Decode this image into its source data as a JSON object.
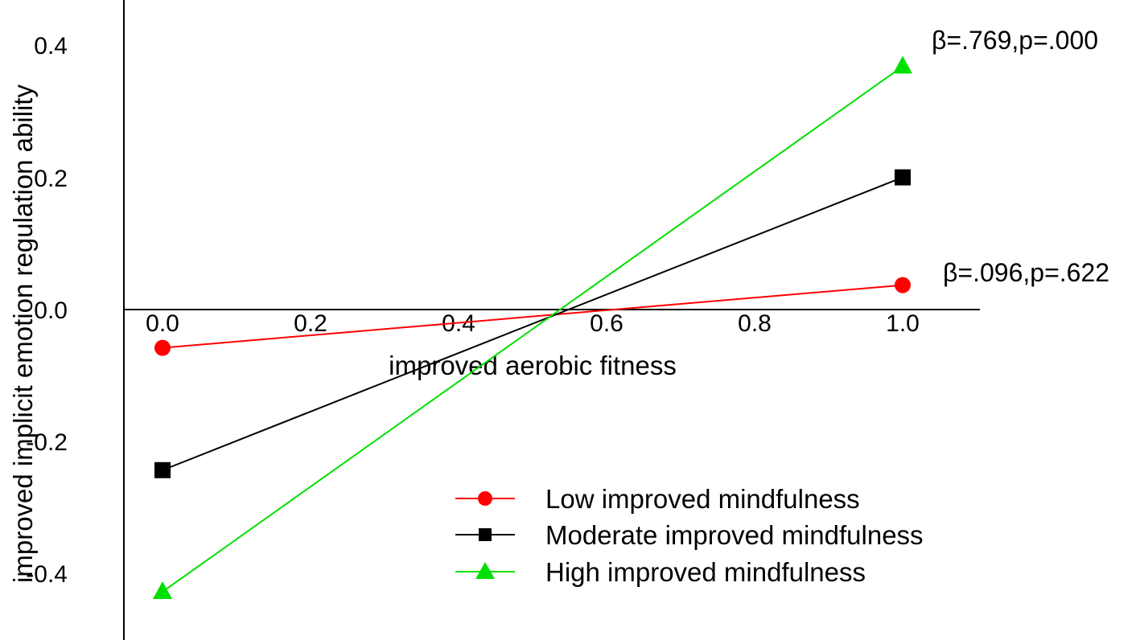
{
  "chart_data": {
    "type": "line",
    "title": "",
    "xlabel": "improved aerobic fitness",
    "ylabel": "improved implicit emotion regulation ability",
    "xlim": [
      -0.05,
      1.1
    ],
    "ylim": [
      -0.5,
      0.46
    ],
    "x_ticks": [
      "0.0",
      "0.2",
      "0.4",
      "0.6",
      "0.8",
      "1.0"
    ],
    "y_ticks": [
      "0.4",
      "0.2",
      "0.0",
      "-0.2",
      "-0.4"
    ],
    "grid": false,
    "legend_position": "bottom-right",
    "series": [
      {
        "name": "Low improved mindfulness",
        "color": "#ff0000",
        "marker": "circle",
        "x": [
          0.0,
          1.0
        ],
        "y": [
          -0.058,
          0.037
        ]
      },
      {
        "name": "Moderate improved mindfulness",
        "color": "#000000",
        "marker": "square",
        "x": [
          0.0,
          1.0
        ],
        "y": [
          -0.243,
          0.2
        ]
      },
      {
        "name": "High improved mindfulness",
        "color": "#00e000",
        "marker": "triangle",
        "x": [
          0.0,
          1.0
        ],
        "y": [
          -0.427,
          0.368
        ]
      }
    ],
    "annotations": [
      {
        "text": "β=.769,p=.000"
      },
      {
        "text": "β=.096,p=.622"
      }
    ]
  }
}
